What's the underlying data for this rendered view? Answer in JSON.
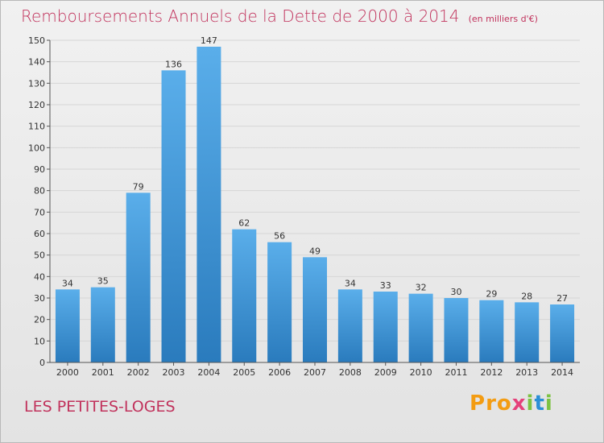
{
  "header": {
    "title": "Remboursements Annuels de la Dette de 2000 à 2014",
    "subtitle": "(en milliers d'€)"
  },
  "footer": {
    "commune": "LES PETITES-LOGES",
    "logo_text": "Proxiti"
  },
  "colors": {
    "title": "#c1325c",
    "bar_light": "#5aaeea",
    "bar_dark": "#2a7bbd",
    "grid": "#d6d6d6",
    "axis": "#555555"
  },
  "chart_data": {
    "type": "bar",
    "title": "Remboursements Annuels de la Dette de 2000 à 2014",
    "subtitle": "(en milliers d'€)",
    "categories": [
      "2000",
      "2001",
      "2002",
      "2003",
      "2004",
      "2005",
      "2006",
      "2007",
      "2008",
      "2009",
      "2010",
      "2011",
      "2012",
      "2013",
      "2014"
    ],
    "values": [
      34,
      35,
      79,
      136,
      147,
      62,
      56,
      49,
      34,
      33,
      32,
      30,
      29,
      28,
      27
    ],
    "ylim": [
      0,
      150
    ],
    "yticks": [
      0,
      10,
      20,
      30,
      40,
      50,
      60,
      70,
      80,
      90,
      100,
      110,
      120,
      130,
      140,
      150
    ],
    "grid": true,
    "data_labels": true
  }
}
